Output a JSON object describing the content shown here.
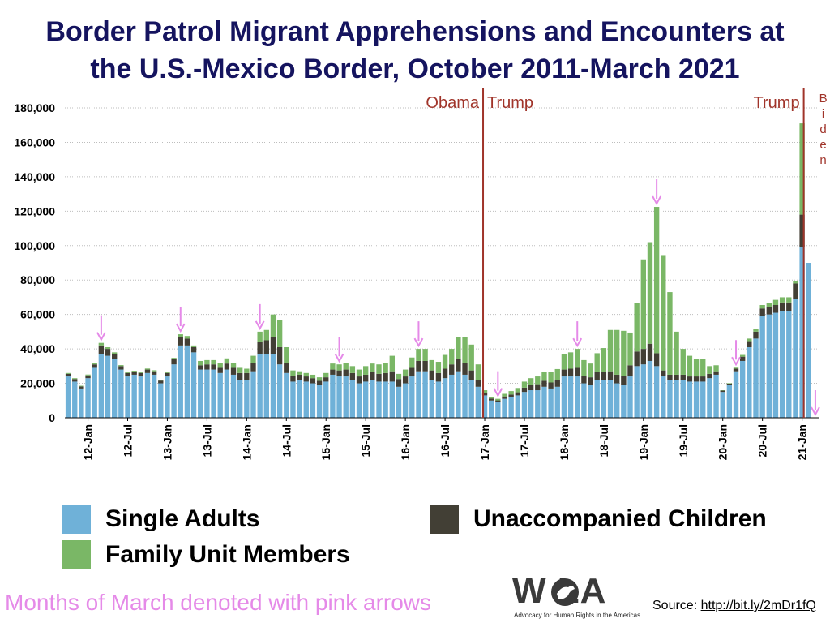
{
  "title_line1": "Border Patrol Migrant Apprehensions and Encounters at",
  "title_line2": "the U.S.-Mexico Border, October 2011-March 2021",
  "legend": {
    "single_adults": "Single Adults",
    "unaccompanied_children": "Unaccompanied Children",
    "family_units": "Family Unit Members"
  },
  "colors": {
    "single_adults": "#6fb1d8",
    "unaccompanied_children": "#423f35",
    "family_units": "#7ab766",
    "arrow": "#e58ae8",
    "divider": "#a0342a",
    "title": "#15145f"
  },
  "note": "Months of March denoted with pink arrows",
  "source_label": "Source: ",
  "source_link": "http://bit.ly/2mDr1fQ",
  "logo_text": "W LA",
  "logo_subtitle": "Advocacy for Human Rights in the Americas",
  "chart_data": {
    "type": "stacked-bar",
    "title": "Border Patrol Migrant Apprehensions and Encounters at the U.S.-Mexico Border, October 2011-March 2021",
    "ylim": [
      0,
      180000
    ],
    "yticks": [
      "0",
      "20,000",
      "40,000",
      "60,000",
      "80,000",
      "100,000",
      "120,000",
      "140,000",
      "160,000",
      "180,000"
    ],
    "x_tick_labels": [
      "12-Jan",
      "12-Jul",
      "13-Jan",
      "13-Jul",
      "14-Jan",
      "14-Jul",
      "15-Jan",
      "15-Jul",
      "16-Jan",
      "16-Jul",
      "17-Jan",
      "17-Jul",
      "18-Jan",
      "18-Jul",
      "19-Jan",
      "19-Jul",
      "20-Jan",
      "20-Jul",
      "21-Jan"
    ],
    "x_tick_month_index": [
      3,
      9,
      15,
      21,
      27,
      33,
      39,
      45,
      51,
      57,
      63,
      69,
      75,
      81,
      87,
      93,
      99,
      105,
      111
    ],
    "start_month": "Oct 2011",
    "annotations": [
      {
        "label": "Obama",
        "at_month_index": 63
      },
      {
        "label": "Trump",
        "at_month_index": 63
      },
      {
        "label": "Trump",
        "at_month_index": 111
      },
      {
        "label": "Biden",
        "at_month_index": 111
      }
    ],
    "march_arrow_month_indices": [
      5,
      17,
      29,
      41,
      53,
      65,
      77,
      89,
      101,
      113
    ],
    "series": [
      {
        "name": "Single Adults",
        "values": [
          24000,
          21000,
          17000,
          23000,
          29000,
          37000,
          36000,
          34000,
          28000,
          24000,
          25000,
          24000,
          26000,
          25000,
          20000,
          24000,
          31000,
          42000,
          42000,
          38000,
          28000,
          28000,
          28000,
          26000,
          28000,
          25000,
          22000,
          22000,
          27000,
          37000,
          37000,
          37000,
          31000,
          26000,
          21000,
          22000,
          21000,
          20000,
          19000,
          21000,
          25000,
          24000,
          24000,
          22000,
          20000,
          21000,
          22000,
          21000,
          21000,
          21000,
          18000,
          20000,
          24000,
          27000,
          27000,
          22000,
          21000,
          23000,
          25000,
          27000,
          25000,
          22000,
          18000,
          13000,
          10000,
          9000,
          11000,
          12000,
          13000,
          15000,
          16000,
          16000,
          18000,
          17000,
          18000,
          24000,
          24000,
          24000,
          20000,
          19000,
          22000,
          22000,
          22000,
          20000,
          19000,
          24000,
          30000,
          31000,
          33000,
          30000,
          24000,
          22000,
          22000,
          22000,
          21000,
          21000,
          21000,
          23000,
          25000,
          15000,
          19000,
          27000,
          33000,
          41000,
          46000,
          59000,
          60000,
          61000,
          62000,
          62000,
          69000,
          99000,
          90000,
          0
        ]
      },
      {
        "name": "Unaccompanied Children",
        "values": [
          1500,
          1500,
          1200,
          1600,
          2000,
          5000,
          4000,
          3000,
          2000,
          2000,
          1800,
          2000,
          2000,
          2000,
          1600,
          2000,
          3000,
          5000,
          4000,
          3000,
          2500,
          3000,
          3000,
          3000,
          3500,
          4000,
          4000,
          4000,
          5000,
          7000,
          8000,
          10000,
          10000,
          6000,
          3500,
          3000,
          3000,
          3000,
          2500,
          2500,
          3000,
          3500,
          4000,
          4000,
          4000,
          4000,
          4500,
          4500,
          5000,
          6000,
          4500,
          4000,
          5000,
          6000,
          6000,
          5500,
          5000,
          5500,
          6000,
          7000,
          7000,
          5500,
          4000,
          1500,
          1200,
          1100,
          1400,
          1500,
          1800,
          2500,
          3000,
          3500,
          3500,
          3500,
          3800,
          4000,
          4500,
          5000,
          4500,
          4500,
          4500,
          4500,
          5000,
          5000,
          5500,
          6500,
          8500,
          9000,
          10000,
          7500,
          3500,
          3000,
          3000,
          3000,
          3000,
          3000,
          3000,
          2500,
          2000,
          800,
          800,
          1500,
          2500,
          3500,
          4000,
          4500,
          4500,
          4500,
          5000,
          5000,
          9000,
          19000,
          0,
          0
        ]
      },
      {
        "name": "Family Unit Members",
        "values": [
          500,
          500,
          400,
          500,
          600,
          1500,
          1000,
          1000,
          600,
          500,
          500,
          600,
          600,
          600,
          500,
          600,
          800,
          1500,
          1500,
          1000,
          2500,
          2500,
          2500,
          3000,
          3000,
          3000,
          3000,
          2500,
          4000,
          6000,
          6000,
          13000,
          16000,
          9000,
          3000,
          2000,
          2000,
          2000,
          2000,
          2500,
          3500,
          3500,
          4000,
          4000,
          4000,
          5000,
          5000,
          5500,
          6000,
          9000,
          3000,
          4000,
          6000,
          7000,
          7000,
          6000,
          6500,
          8000,
          9000,
          13000,
          15000,
          15000,
          9000,
          1500,
          1000,
          900,
          1500,
          2000,
          2500,
          3500,
          4000,
          4500,
          5000,
          6000,
          6500,
          9000,
          9500,
          11000,
          9000,
          8000,
          11000,
          14000,
          24000,
          26000,
          26000,
          19000,
          28000,
          52000,
          59000,
          85000,
          67000,
          48000,
          25000,
          15000,
          12000,
          10000,
          10000,
          4500,
          3500,
          200,
          300,
          600,
          1000,
          1500,
          1500,
          2000,
          2000,
          3000,
          3000,
          3000,
          1500,
          53000,
          0,
          0
        ]
      }
    ]
  }
}
